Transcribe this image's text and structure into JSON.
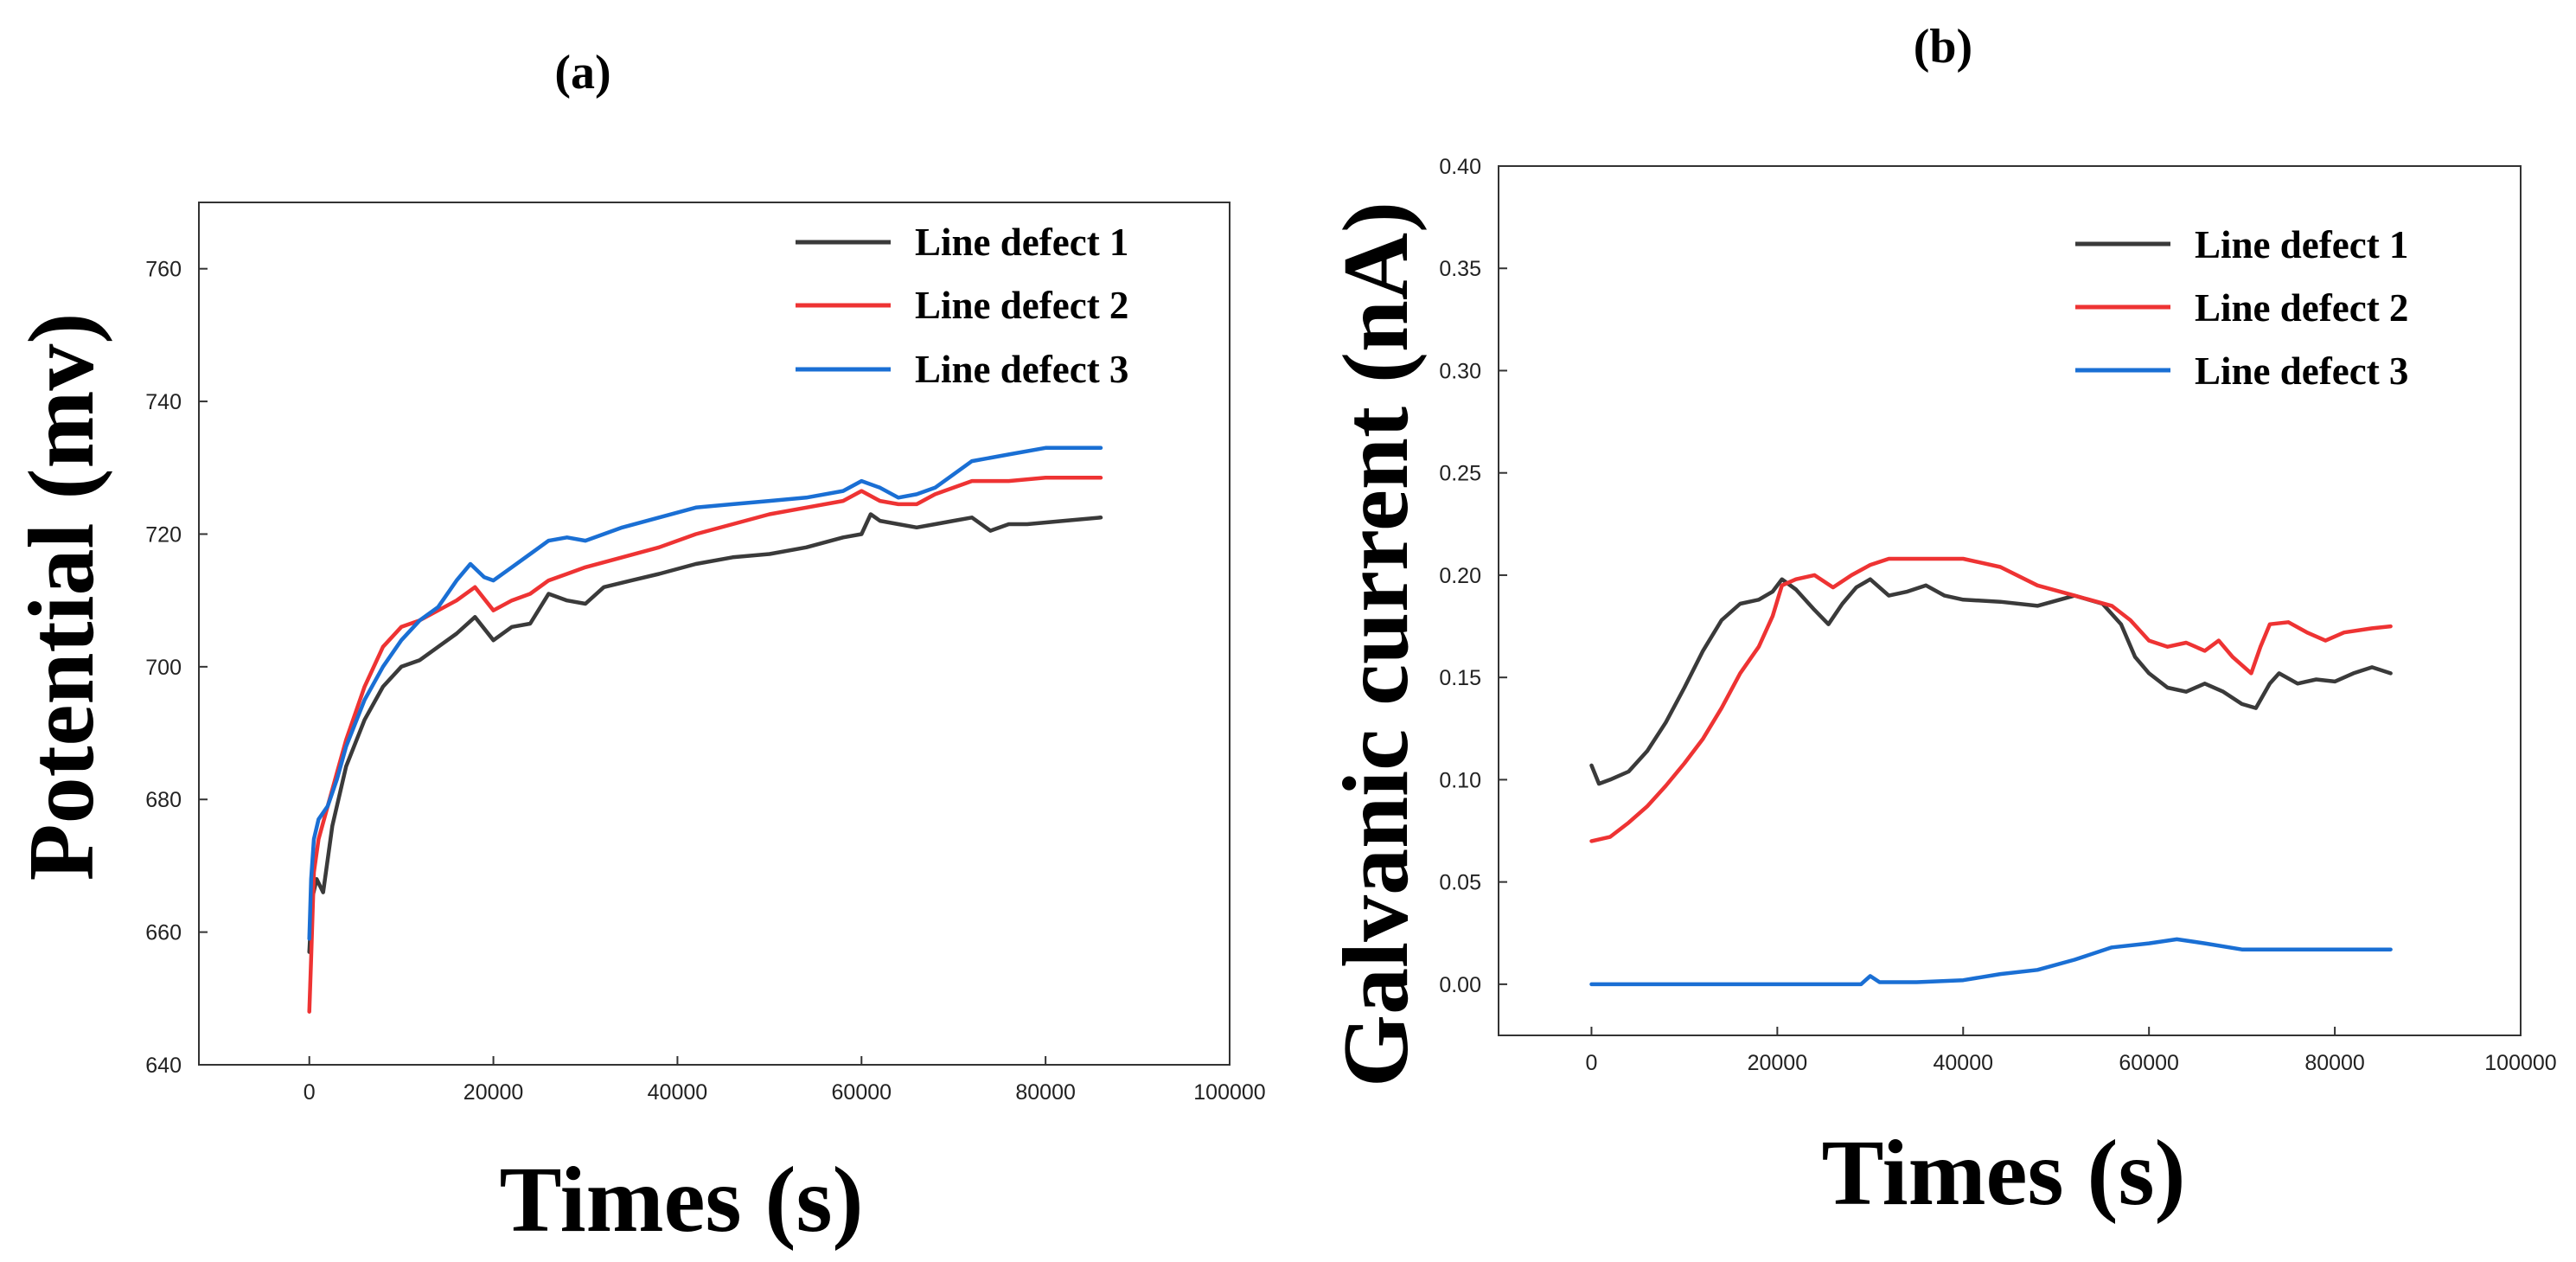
{
  "chart_data": [
    {
      "type": "line",
      "panel_label": "(a)",
      "title": "",
      "xlabel": "Times (s)",
      "ylabel": "Potential (mv)",
      "xlim": [
        -12000,
        100000
      ],
      "ylim": [
        640,
        770
      ],
      "xticks": [
        0,
        20000,
        40000,
        60000,
        80000,
        100000
      ],
      "xtick_labels": [
        "0",
        "20000",
        "40000",
        "60000",
        "80000",
        "100000"
      ],
      "yticks": [
        640,
        660,
        680,
        700,
        720,
        740,
        760
      ],
      "ytick_labels": [
        "640",
        "660",
        "680",
        "700",
        "720",
        "740",
        "760"
      ],
      "grid": false,
      "legend_position": "top-right",
      "series": [
        {
          "name": "Line defect 1",
          "color": "#3a3a3a",
          "points": [
            [
              0,
              657
            ],
            [
              300,
              665
            ],
            [
              800,
              668
            ],
            [
              1500,
              666
            ],
            [
              2500,
              676
            ],
            [
              4000,
              685
            ],
            [
              6000,
              692
            ],
            [
              8000,
              697
            ],
            [
              10000,
              700
            ],
            [
              12000,
              701
            ],
            [
              14000,
              703
            ],
            [
              16000,
              705
            ],
            [
              18000,
              707.5
            ],
            [
              20000,
              704
            ],
            [
              22000,
              706
            ],
            [
              24000,
              706.5
            ],
            [
              26000,
              711
            ],
            [
              28000,
              710
            ],
            [
              30000,
              709.5
            ],
            [
              32000,
              712
            ],
            [
              35000,
              713
            ],
            [
              38000,
              714
            ],
            [
              42000,
              715.5
            ],
            [
              46000,
              716.5
            ],
            [
              50000,
              717
            ],
            [
              54000,
              718
            ],
            [
              58000,
              719.5
            ],
            [
              60000,
              720
            ],
            [
              61000,
              723
            ],
            [
              62000,
              722
            ],
            [
              64000,
              721.5
            ],
            [
              66000,
              721
            ],
            [
              68000,
              721.5
            ],
            [
              70000,
              722
            ],
            [
              72000,
              722.5
            ],
            [
              74000,
              720.5
            ],
            [
              76000,
              721.5
            ],
            [
              78000,
              721.5
            ],
            [
              82000,
              722
            ],
            [
              86000,
              722.5
            ]
          ]
        },
        {
          "name": "Line defect 2",
          "color": "#ee3333",
          "points": [
            [
              0,
              648
            ],
            [
              200,
              656
            ],
            [
              500,
              669
            ],
            [
              1000,
              674
            ],
            [
              2000,
              679
            ],
            [
              3000,
              684
            ],
            [
              4000,
              689
            ],
            [
              6000,
              697
            ],
            [
              8000,
              703
            ],
            [
              10000,
              706
            ],
            [
              12000,
              707
            ],
            [
              14000,
              708.5
            ],
            [
              16000,
              710
            ],
            [
              18000,
              712
            ],
            [
              20000,
              708.5
            ],
            [
              22000,
              710
            ],
            [
              24000,
              711
            ],
            [
              26000,
              713
            ],
            [
              28000,
              714
            ],
            [
              30000,
              715
            ],
            [
              34000,
              716.5
            ],
            [
              38000,
              718
            ],
            [
              42000,
              720
            ],
            [
              46000,
              721.5
            ],
            [
              50000,
              723
            ],
            [
              54000,
              724
            ],
            [
              58000,
              725
            ],
            [
              60000,
              726.5
            ],
            [
              62000,
              725
            ],
            [
              64000,
              724.5
            ],
            [
              66000,
              724.5
            ],
            [
              68000,
              726
            ],
            [
              70000,
              727
            ],
            [
              72000,
              728
            ],
            [
              76000,
              728
            ],
            [
              80000,
              728.5
            ],
            [
              86000,
              728.5
            ]
          ]
        },
        {
          "name": "Line defect 3",
          "color": "#1a6fd4",
          "points": [
            [
              0,
              659
            ],
            [
              200,
              668
            ],
            [
              500,
              674
            ],
            [
              1000,
              677
            ],
            [
              2000,
              679
            ],
            [
              3000,
              683
            ],
            [
              4000,
              688
            ],
            [
              6000,
              695
            ],
            [
              8000,
              700
            ],
            [
              10000,
              704
            ],
            [
              12000,
              707
            ],
            [
              14000,
              709
            ],
            [
              16000,
              713
            ],
            [
              17500,
              715.5
            ],
            [
              19000,
              713.5
            ],
            [
              20000,
              713
            ],
            [
              22000,
              715
            ],
            [
              24000,
              717
            ],
            [
              26000,
              719
            ],
            [
              28000,
              719.5
            ],
            [
              30000,
              719
            ],
            [
              34000,
              721
            ],
            [
              38000,
              722.5
            ],
            [
              42000,
              724
            ],
            [
              46000,
              724.5
            ],
            [
              50000,
              725
            ],
            [
              54000,
              725.5
            ],
            [
              58000,
              726.5
            ],
            [
              60000,
              728
            ],
            [
              62000,
              727
            ],
            [
              64000,
              725.5
            ],
            [
              66000,
              726
            ],
            [
              68000,
              727
            ],
            [
              70000,
              729
            ],
            [
              72000,
              731
            ],
            [
              76000,
              732
            ],
            [
              80000,
              733
            ],
            [
              86000,
              733
            ]
          ]
        }
      ]
    },
    {
      "type": "line",
      "panel_label": "(b)",
      "title": "",
      "xlabel": "Times (s)",
      "ylabel": "Galvanic current (nA)",
      "xlim": [
        -10000,
        100000
      ],
      "ylim": [
        -0.025,
        0.4
      ],
      "xticks": [
        0,
        20000,
        40000,
        60000,
        80000,
        100000
      ],
      "xtick_labels": [
        "0",
        "20000",
        "40000",
        "60000",
        "80000",
        "100000"
      ],
      "yticks": [
        0,
        0.05,
        0.1,
        0.15,
        0.2,
        0.25,
        0.3,
        0.35,
        0.4
      ],
      "ytick_labels": [
        "0.00",
        "0.05",
        "0.10",
        "0.15",
        "0.20",
        "0.25",
        "0.30",
        "0.35",
        "0.40"
      ],
      "grid": false,
      "legend_position": "top-right",
      "series": [
        {
          "name": "Line defect 1",
          "color": "#3a3a3a",
          "points": [
            [
              0,
              0.107
            ],
            [
              800,
              0.098
            ],
            [
              2000,
              0.1
            ],
            [
              4000,
              0.104
            ],
            [
              6000,
              0.114
            ],
            [
              8000,
              0.128
            ],
            [
              10000,
              0.145
            ],
            [
              12000,
              0.163
            ],
            [
              14000,
              0.178
            ],
            [
              16000,
              0.186
            ],
            [
              18000,
              0.188
            ],
            [
              19500,
              0.192
            ],
            [
              20500,
              0.198
            ],
            [
              22000,
              0.193
            ],
            [
              24000,
              0.183
            ],
            [
              25500,
              0.176
            ],
            [
              27000,
              0.186
            ],
            [
              28500,
              0.194
            ],
            [
              30000,
              0.198
            ],
            [
              32000,
              0.19
            ],
            [
              34000,
              0.192
            ],
            [
              36000,
              0.195
            ],
            [
              38000,
              0.19
            ],
            [
              40000,
              0.188
            ],
            [
              44000,
              0.187
            ],
            [
              48000,
              0.185
            ],
            [
              52000,
              0.19
            ],
            [
              55000,
              0.186
            ],
            [
              57000,
              0.176
            ],
            [
              58500,
              0.16
            ],
            [
              60000,
              0.152
            ],
            [
              62000,
              0.145
            ],
            [
              64000,
              0.143
            ],
            [
              66000,
              0.147
            ],
            [
              68000,
              0.143
            ],
            [
              70000,
              0.137
            ],
            [
              71500,
              0.135
            ],
            [
              73000,
              0.147
            ],
            [
              74000,
              0.152
            ],
            [
              76000,
              0.147
            ],
            [
              78000,
              0.149
            ],
            [
              80000,
              0.148
            ],
            [
              82000,
              0.152
            ],
            [
              84000,
              0.155
            ],
            [
              86000,
              0.152
            ]
          ]
        },
        {
          "name": "Line defect 2",
          "color": "#ee3333",
          "points": [
            [
              0,
              0.07
            ],
            [
              2000,
              0.072
            ],
            [
              4000,
              0.079
            ],
            [
              6000,
              0.087
            ],
            [
              8000,
              0.097
            ],
            [
              10000,
              0.108
            ],
            [
              12000,
              0.12
            ],
            [
              14000,
              0.135
            ],
            [
              16000,
              0.152
            ],
            [
              18000,
              0.165
            ],
            [
              19500,
              0.18
            ],
            [
              20500,
              0.195
            ],
            [
              22000,
              0.198
            ],
            [
              24000,
              0.2
            ],
            [
              26000,
              0.194
            ],
            [
              28000,
              0.2
            ],
            [
              30000,
              0.205
            ],
            [
              32000,
              0.208
            ],
            [
              36000,
              0.208
            ],
            [
              40000,
              0.208
            ],
            [
              44000,
              0.204
            ],
            [
              48000,
              0.195
            ],
            [
              52000,
              0.19
            ],
            [
              56000,
              0.185
            ],
            [
              58000,
              0.178
            ],
            [
              60000,
              0.168
            ],
            [
              62000,
              0.165
            ],
            [
              64000,
              0.167
            ],
            [
              66000,
              0.163
            ],
            [
              67500,
              0.168
            ],
            [
              69000,
              0.16
            ],
            [
              71000,
              0.152
            ],
            [
              72000,
              0.165
            ],
            [
              73000,
              0.176
            ],
            [
              75000,
              0.177
            ],
            [
              77000,
              0.172
            ],
            [
              79000,
              0.168
            ],
            [
              81000,
              0.172
            ],
            [
              84000,
              0.174
            ],
            [
              86000,
              0.175
            ]
          ]
        },
        {
          "name": "Line defect 3",
          "color": "#1a6fd4",
          "points": [
            [
              0,
              0
            ],
            [
              10000,
              0
            ],
            [
              20000,
              0
            ],
            [
              29000,
              0
            ],
            [
              30000,
              0.004
            ],
            [
              31000,
              0.001
            ],
            [
              35000,
              0.001
            ],
            [
              40000,
              0.002
            ],
            [
              44000,
              0.005
            ],
            [
              48000,
              0.007
            ],
            [
              52000,
              0.012
            ],
            [
              56000,
              0.018
            ],
            [
              60000,
              0.02
            ],
            [
              63000,
              0.022
            ],
            [
              66000,
              0.02
            ],
            [
              70000,
              0.017
            ],
            [
              76000,
              0.017
            ],
            [
              86000,
              0.017
            ]
          ]
        }
      ]
    }
  ]
}
